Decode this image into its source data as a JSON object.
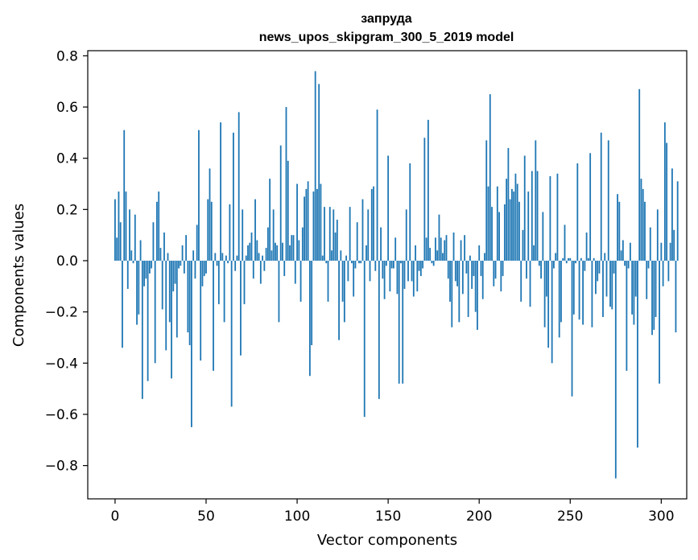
{
  "chart_data": {
    "type": "bar",
    "title_line1": "запруда",
    "title_line2": "news_upos_skipgram_300_5_2019 model",
    "xlabel": "Vector components",
    "ylabel": "Components values",
    "xlim": [
      -15,
      314
    ],
    "ylim": [
      -0.93,
      0.82
    ],
    "xticks": [
      0,
      50,
      100,
      150,
      200,
      250,
      300
    ],
    "yticks": [
      -0.8,
      -0.6,
      -0.4,
      -0.2,
      0.0,
      0.2,
      0.4,
      0.6,
      0.8
    ],
    "ytick_labels": [
      "−0.8",
      "−0.6",
      "−0.4",
      "−0.2",
      "0.0",
      "0.2",
      "0.4",
      "0.6",
      "0.8"
    ],
    "bar_color": "#1f77b4",
    "values": [
      0.24,
      0.09,
      0.27,
      0.15,
      -0.34,
      0.51,
      0.27,
      -0.11,
      0.2,
      0.04,
      -0.01,
      0.18,
      -0.25,
      -0.21,
      0.08,
      -0.54,
      -0.1,
      -0.07,
      -0.47,
      -0.05,
      -0.03,
      0.15,
      -0.4,
      0.23,
      0.27,
      0.05,
      -0.19,
      0.11,
      -0.35,
      0.03,
      -0.24,
      -0.46,
      -0.12,
      -0.09,
      -0.3,
      -0.03,
      -0.02,
      0.06,
      -0.05,
      0.1,
      -0.28,
      -0.33,
      -0.65,
      0.04,
      -0.07,
      0.14,
      0.51,
      -0.39,
      -0.1,
      -0.06,
      -0.05,
      0.24,
      0.36,
      0.23,
      -0.43,
      0.03,
      -0.02,
      -0.17,
      0.54,
      0.03,
      -0.24,
      0.02,
      -0.01,
      0.22,
      -0.57,
      0.5,
      -0.04,
      0.02,
      0.58,
      -0.37,
      0.2,
      -0.17,
      0.02,
      0.06,
      0.07,
      0.11,
      -0.07,
      0.24,
      0.08,
      0.03,
      -0.09,
      0.02,
      -0.04,
      0.05,
      0.13,
      0.32,
      0.04,
      0.2,
      0.07,
      0.06,
      -0.24,
      0.45,
      0.07,
      -0.06,
      0.6,
      0.39,
      0.06,
      0.1,
      0.1,
      -0.09,
      0.3,
      0.08,
      -0.16,
      0.13,
      0.25,
      0.28,
      0.31,
      -0.45,
      -0.33,
      0.27,
      0.74,
      0.28,
      0.69,
      0.3,
      0.02,
      0.21,
      -0.01,
      -0.16,
      0.21,
      0.04,
      0.2,
      0.11,
      0.16,
      -0.31,
      0.04,
      -0.16,
      -0.24,
      0.02,
      -0.08,
      0.21,
      -0.01,
      -0.14,
      -0.03,
      0.15,
      -0.01,
      -0.01,
      0.24,
      -0.61,
      0.06,
      0.2,
      -0.08,
      0.28,
      0.29,
      -0.04,
      0.59,
      -0.54,
      0.13,
      -0.07,
      -0.15,
      -0.02,
      0.41,
      -0.12,
      -0.03,
      -0.03,
      0.09,
      -0.13,
      -0.48,
      -0.01,
      -0.48,
      -0.11,
      0.2,
      -0.08,
      0.38,
      -0.08,
      -0.14,
      0.06,
      -0.12,
      -0.04,
      -0.06,
      -0.03,
      0.48,
      0.09,
      0.55,
      0.05,
      -0.01,
      -0.02,
      0.09,
      0.04,
      0.18,
      0.09,
      0.03,
      0.08,
      0.1,
      -0.07,
      -0.16,
      -0.26,
      0.11,
      -0.08,
      -0.1,
      -0.24,
      0.08,
      -0.13,
      0.1,
      -0.05,
      -0.22,
      0.02,
      -0.11,
      -0.06,
      -0.2,
      -0.27,
      0.06,
      -0.06,
      -0.15,
      0.03,
      0.47,
      0.29,
      0.65,
      0.21,
      -0.1,
      -0.07,
      0.29,
      0.19,
      -0.12,
      -0.06,
      0.22,
      0.32,
      0.44,
      0.24,
      0.28,
      0.27,
      0.34,
      0.3,
      0.23,
      -0.16,
      0.12,
      0.41,
      -0.07,
      0.27,
      -0.18,
      0.35,
      0.06,
      0.47,
      0.35,
      -0.02,
      -0.07,
      0.19,
      -0.26,
      -0.14,
      -0.34,
      0.33,
      -0.4,
      -0.03,
      0.03,
      0.34,
      -0.3,
      -0.24,
      0.01,
      0.14,
      -0.01,
      0.01,
      0.01,
      -0.53,
      -0.21,
      -0.01,
      0.38,
      -0.23,
      0.01,
      -0.25,
      -0.04,
      0.11,
      0.01,
      0.42,
      -0.26,
      0.01,
      -0.13,
      -0.08,
      -0.05,
      0.5,
      -0.22,
      0.03,
      -0.14,
      0.47,
      -0.18,
      -0.19,
      -0.05,
      -0.85,
      0.26,
      0.23,
      0.04,
      0.08,
      -0.02,
      -0.43,
      -0.03,
      0.07,
      -0.21,
      -0.25,
      -0.14,
      -0.73,
      0.67,
      0.32,
      0.28,
      0.23,
      -0.15,
      -0.03,
      0.13,
      -0.29,
      -0.27,
      -0.22,
      0.2,
      -0.48,
      0.07,
      -0.1,
      0.54,
      0.46,
      -0.08,
      0.07,
      0.36,
      0.12,
      -0.28,
      0.31
    ]
  }
}
